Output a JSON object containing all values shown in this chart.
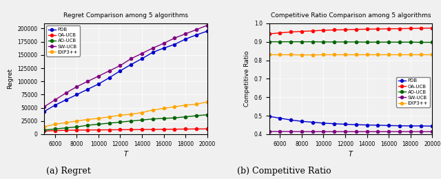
{
  "T": [
    5000,
    6000,
    7000,
    8000,
    9000,
    10000,
    11000,
    12000,
    13000,
    14000,
    15000,
    16000,
    17000,
    18000,
    19000,
    20000
  ],
  "regret": {
    "PDB": [
      43000,
      55000,
      65000,
      75000,
      85000,
      95000,
      107000,
      120000,
      132000,
      143000,
      155000,
      163000,
      170000,
      180000,
      188000,
      195000
    ],
    "OA-UCB": [
      6000,
      7000,
      7500,
      7800,
      8000,
      8200,
      8400,
      8600,
      8800,
      9000,
      9200,
      9400,
      9600,
      9800,
      10000,
      10200
    ],
    "AD-UCB": [
      8000,
      10000,
      12000,
      14000,
      17000,
      19000,
      21000,
      23000,
      25000,
      27000,
      29000,
      30000,
      31000,
      33000,
      35000,
      37000
    ],
    "SW-UCB": [
      52000,
      65000,
      78000,
      90000,
      100000,
      110000,
      120000,
      130000,
      143000,
      153000,
      163000,
      172000,
      182000,
      190000,
      198000,
      206000
    ],
    "EXP3++": [
      14000,
      19000,
      22000,
      25000,
      28000,
      30000,
      33000,
      36000,
      38000,
      41000,
      46000,
      49000,
      52000,
      55000,
      57000,
      61000
    ]
  },
  "competitive_ratio": {
    "PDB": [
      0.497,
      0.487,
      0.477,
      0.47,
      0.465,
      0.46,
      0.457,
      0.454,
      0.452,
      0.45,
      0.449,
      0.447,
      0.446,
      0.445,
      0.445,
      0.444
    ],
    "OA-UCB": [
      0.943,
      0.948,
      0.953,
      0.956,
      0.959,
      0.962,
      0.964,
      0.965,
      0.967,
      0.968,
      0.969,
      0.97,
      0.971,
      0.972,
      0.973,
      0.974
    ],
    "AD-UCB": [
      0.9,
      0.9,
      0.9,
      0.9,
      0.9,
      0.899,
      0.899,
      0.899,
      0.899,
      0.898,
      0.898,
      0.898,
      0.898,
      0.898,
      0.897,
      0.897
    ],
    "SW-UCB": [
      0.415,
      0.415,
      0.415,
      0.414,
      0.414,
      0.414,
      0.414,
      0.414,
      0.414,
      0.414,
      0.414,
      0.414,
      0.414,
      0.414,
      0.414,
      0.414
    ],
    "EXP3++": [
      0.83,
      0.83,
      0.83,
      0.829,
      0.829,
      0.83,
      0.83,
      0.83,
      0.83,
      0.83,
      0.83,
      0.83,
      0.83,
      0.83,
      0.83,
      0.83
    ]
  },
  "colors": {
    "PDB": "#0000cc",
    "OA-UCB": "#ff0000",
    "AD-UCB": "#006400",
    "SW-UCB": "#800080",
    "EXP3++": "#ffa500"
  },
  "regret_title": "Regret Comparison among 5 algorithms",
  "cr_title": "Competitive Ratio Comparison among 5 algorithms",
  "xlabel": "T",
  "regret_ylabel": "Regret",
  "cr_ylabel": "Competitive Ratio",
  "caption_left": "(a) Regret",
  "caption_right": "(b) Competitive Ratio",
  "regret_ylim": [
    0,
    210000
  ],
  "regret_yticks": [
    0,
    25000,
    50000,
    75000,
    100000,
    125000,
    150000,
    175000,
    200000
  ],
  "cr_ylim": [
    0.4,
    1.0
  ],
  "cr_yticks": [
    0.4,
    0.5,
    0.6,
    0.7,
    0.8,
    0.9,
    1.0
  ],
  "xticks": [
    6000,
    8000,
    10000,
    12000,
    14000,
    16000,
    18000,
    20000
  ],
  "xlim": [
    5000,
    20000
  ]
}
